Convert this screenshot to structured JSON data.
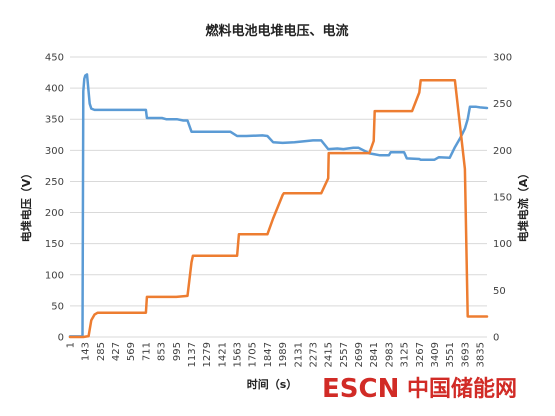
{
  "chart_data": {
    "type": "line",
    "title": "燃料电池电堆电压、电流",
    "xlabel": "时间（s）",
    "ylabel_left": "电堆电压（V）",
    "ylabel_right": "电堆电流（A）",
    "x_tick_labels": [
      "1",
      "143",
      "285",
      "427",
      "569",
      "711",
      "853",
      "995",
      "1137",
      "1279",
      "1421",
      "1563",
      "1705",
      "1847",
      "1989",
      "2131",
      "2273",
      "2415",
      "2557",
      "2699",
      "2841",
      "2983",
      "3125",
      "3267",
      "3409",
      "3551",
      "3693",
      "3835"
    ],
    "xlim": [
      1,
      3900
    ],
    "ylim_left": [
      0,
      450
    ],
    "yticks_left": [
      0,
      50,
      100,
      150,
      200,
      250,
      300,
      350,
      400,
      450
    ],
    "ylim_right": [
      0,
      300
    ],
    "yticks_right": [
      0,
      50,
      100,
      150,
      200,
      250,
      300
    ],
    "grid": "horizontal",
    "legend": "none",
    "series": [
      {
        "axis": "left",
        "color": "#5b9bd5",
        "x": [
          1,
          118,
          125,
          135,
          143,
          160,
          185,
          200,
          230,
          285,
          400,
          569,
          600,
          711,
          720,
          860,
          900,
          1000,
          1060,
          1100,
          1137,
          1200,
          1400,
          1500,
          1563,
          1650,
          1800,
          1847,
          1900,
          1989,
          2100,
          2273,
          2350,
          2415,
          2500,
          2557,
          2650,
          2699,
          2800,
          2841,
          2900,
          2983,
          3000,
          3125,
          3150,
          3267,
          3280,
          3409,
          3450,
          3551,
          3600,
          3650,
          3693,
          3720,
          3740,
          3800,
          3835,
          3900
        ],
        "y": [
          1,
          1,
          395,
          415,
          420,
          422,
          375,
          367,
          365,
          365,
          365,
          365,
          365,
          365,
          352,
          352,
          350,
          350,
          348,
          348,
          330,
          330,
          330,
          330,
          323,
          323,
          324,
          323,
          313,
          312,
          313,
          316,
          316,
          302,
          303,
          302,
          304,
          304,
          295,
          294,
          292,
          292,
          297,
          297,
          287,
          286,
          285,
          285,
          289,
          288,
          305,
          320,
          335,
          350,
          370,
          370,
          369,
          368
        ]
      },
      {
        "axis": "right",
        "color": "#ed7d31",
        "x": [
          1,
          125,
          175,
          200,
          230,
          260,
          285,
          400,
          569,
          600,
          711,
          720,
          830,
          995,
          1100,
          1137,
          1150,
          1280,
          1421,
          1500,
          1563,
          1580,
          1700,
          1847,
          1900,
          1989,
          2000,
          2131,
          2273,
          2350,
          2415,
          2420,
          2557,
          2699,
          2800,
          2841,
          2850,
          2983,
          3125,
          3200,
          3267,
          3280,
          3409,
          3551,
          3600,
          3693,
          3720,
          3835,
          3900
        ],
        "y": [
          0,
          0,
          1,
          18,
          24,
          26,
          26,
          26,
          26,
          26,
          26,
          43,
          43,
          43,
          44,
          80,
          87,
          87,
          87,
          87,
          87,
          110,
          110,
          110,
          127,
          152,
          154,
          154,
          154,
          154,
          170,
          197,
          197,
          197,
          197,
          210,
          242,
          242,
          242,
          242,
          262,
          275,
          275,
          275,
          275,
          180,
          22,
          22,
          22
        ]
      }
    ]
  },
  "watermark": {
    "latin": "ESCN",
    "cn": "中国储能网",
    "latin_color": "#d12b26",
    "cn_color": "#d12b26"
  }
}
